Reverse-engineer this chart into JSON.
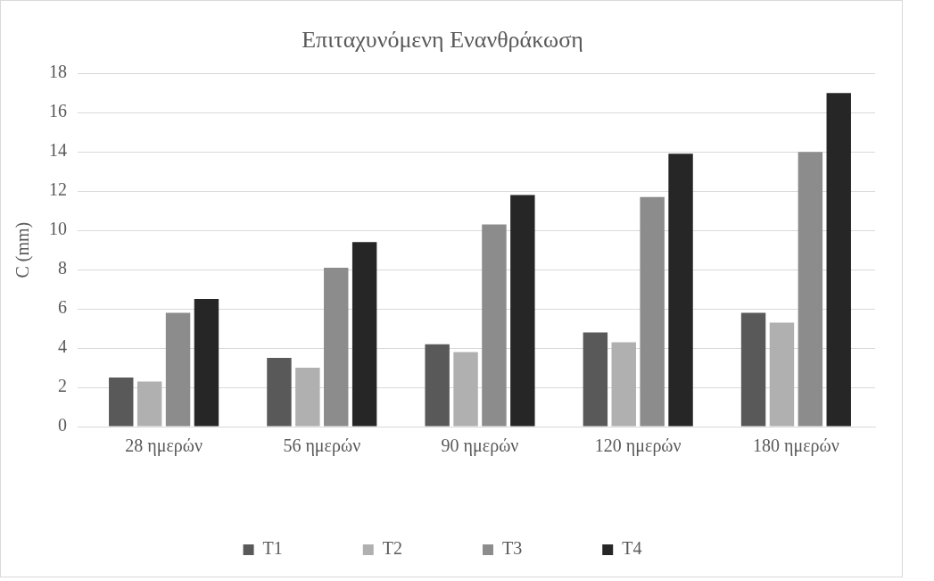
{
  "chart_data": {
    "type": "bar",
    "title": "Επιταχυνόμενη Ενανθράκωση",
    "ylabel": "C (mm)",
    "categories": [
      "28 ημερών",
      "56 ημερών",
      "90 ημερών",
      "120 ημερών",
      "180 ημερών"
    ],
    "series": [
      {
        "name": "T1",
        "color": "#595959",
        "values": [
          2.5,
          3.5,
          4.2,
          4.8,
          5.8
        ]
      },
      {
        "name": "T2",
        "color": "#b0b0b0",
        "values": [
          2.3,
          3.0,
          3.8,
          4.3,
          5.3
        ]
      },
      {
        "name": "T3",
        "color": "#8c8c8c",
        "values": [
          5.8,
          8.1,
          10.3,
          11.7,
          14.0
        ]
      },
      {
        "name": "T4",
        "color": "#262626",
        "values": [
          6.5,
          9.4,
          11.8,
          13.9,
          17.0
        ]
      }
    ],
    "ylim": [
      0,
      18
    ],
    "yticks": [
      0,
      2,
      4,
      6,
      8,
      10,
      12,
      14,
      16,
      18
    ],
    "grid": "y",
    "legend": "bottom"
  }
}
